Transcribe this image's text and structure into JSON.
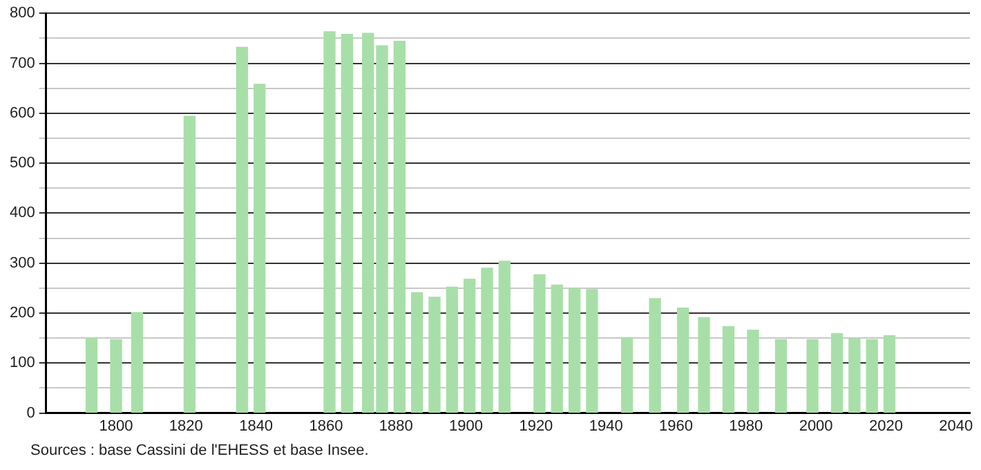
{
  "chart_data": {
    "type": "bar",
    "x": [
      1793,
      1800,
      1806,
      1821,
      1836,
      1841,
      1861,
      1866,
      1872,
      1876,
      1881,
      1886,
      1891,
      1896,
      1901,
      1906,
      1911,
      1921,
      1926,
      1931,
      1936,
      1946,
      1954,
      1962,
      1968,
      1975,
      1982,
      1990,
      1999,
      2006,
      2011,
      2016,
      2021
    ],
    "values": [
      150,
      147,
      201,
      594,
      732,
      658,
      763,
      758,
      760,
      735,
      744,
      241,
      232,
      252,
      268,
      290,
      304,
      277,
      256,
      249,
      247,
      151,
      229,
      210,
      191,
      173,
      166,
      147,
      147,
      159,
      149,
      147,
      155
    ],
    "color": "#a8dfa8",
    "xlim": [
      1780,
      2044
    ],
    "xticks": [
      1800,
      1820,
      1840,
      1860,
      1880,
      1900,
      1920,
      1940,
      1960,
      1980,
      2000,
      2020,
      2040
    ],
    "ylim": [
      0,
      800
    ],
    "yticks": [
      0,
      {
        "value": 50,
        "label": null
      },
      100,
      {
        "value": 150,
        "label": null
      },
      200,
      {
        "value": 250,
        "label": null
      },
      300,
      {
        "value": 350,
        "label": null
      },
      400,
      {
        "value": 450,
        "label": null
      },
      500,
      {
        "value": 550,
        "label": null
      },
      600,
      {
        "value": 650,
        "label": null
      },
      700,
      {
        "value": 750,
        "label": null
      },
      800
    ],
    "grid": "y",
    "annotations": [
      "Sources : base Cassini de l'EHESS et base Insee."
    ]
  }
}
